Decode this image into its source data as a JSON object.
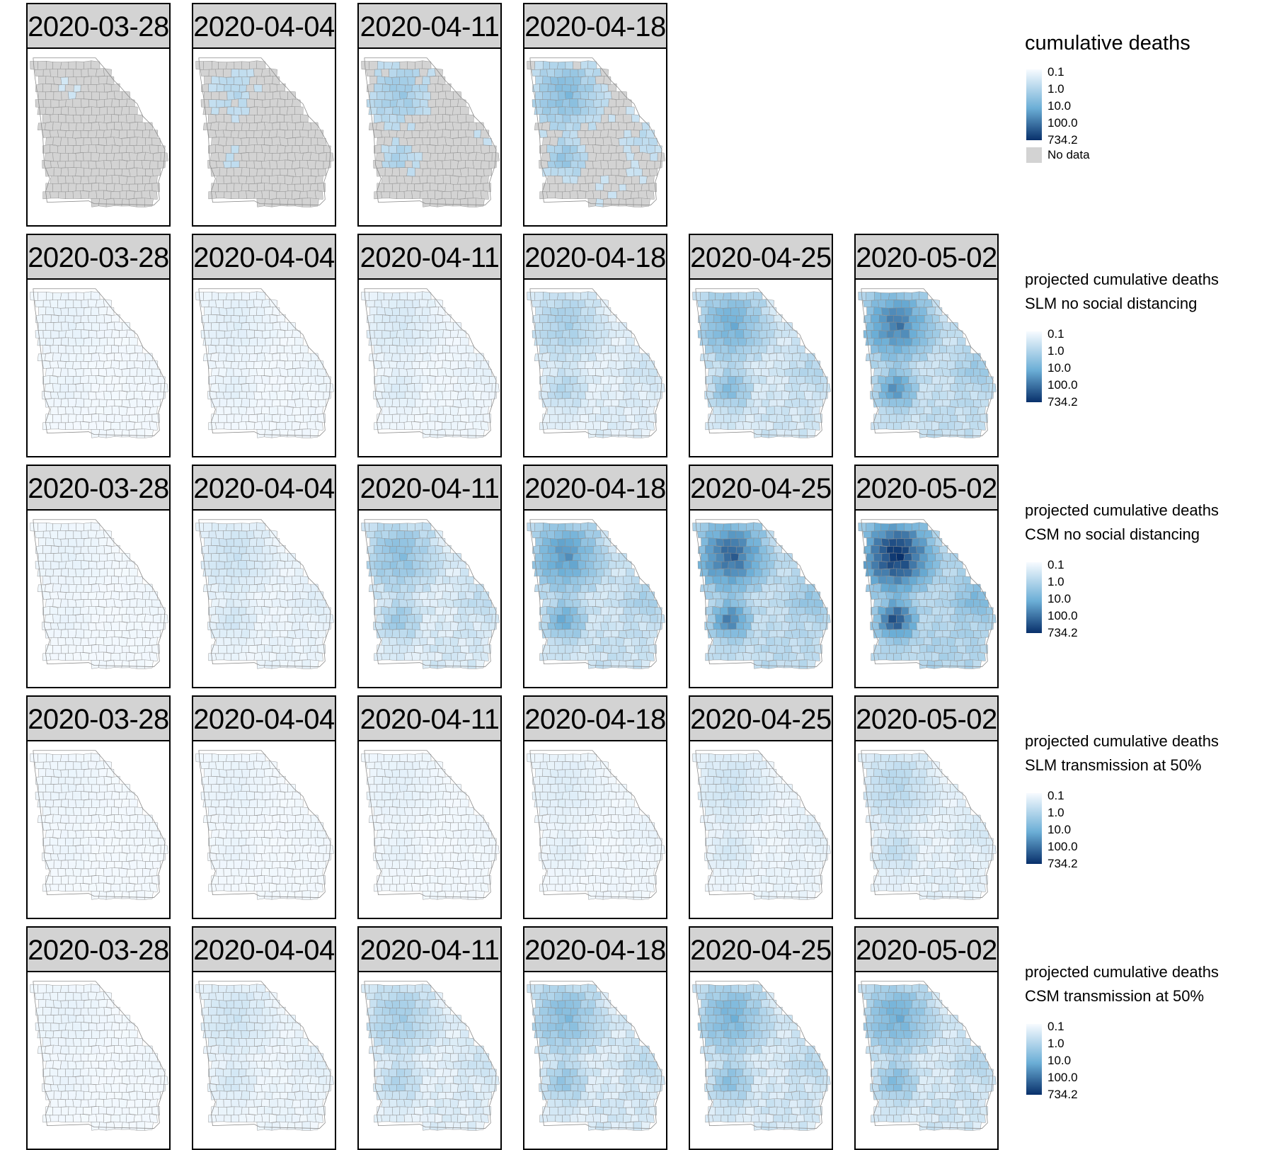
{
  "rows": [
    {
      "legend_title": "cumulative deaths",
      "legend_subtitle": "",
      "panels": [
        {
          "date": "2020-03-28",
          "intensity": 0.12,
          "nodata": 0.8
        },
        {
          "date": "2020-04-04",
          "intensity": 0.2,
          "nodata": 0.62
        },
        {
          "date": "2020-04-11",
          "intensity": 0.28,
          "nodata": 0.45
        },
        {
          "date": "2020-04-18",
          "intensity": 0.36,
          "nodata": 0.3
        }
      ]
    },
    {
      "legend_title": "projected cumulative deaths",
      "legend_subtitle": "SLM no social distancing",
      "panels": [
        {
          "date": "2020-03-28",
          "intensity": 0.05
        },
        {
          "date": "2020-04-04",
          "intensity": 0.07
        },
        {
          "date": "2020-04-11",
          "intensity": 0.1
        },
        {
          "date": "2020-04-18",
          "intensity": 0.25
        },
        {
          "date": "2020-04-25",
          "intensity": 0.42
        },
        {
          "date": "2020-05-02",
          "intensity": 0.58
        }
      ]
    },
    {
      "legend_title": "projected cumulative deaths",
      "legend_subtitle": "CSM no social distancing",
      "panels": [
        {
          "date": "2020-03-28",
          "intensity": 0.05
        },
        {
          "date": "2020-04-04",
          "intensity": 0.14
        },
        {
          "date": "2020-04-11",
          "intensity": 0.34
        },
        {
          "date": "2020-04-18",
          "intensity": 0.5
        },
        {
          "date": "2020-04-25",
          "intensity": 0.64
        },
        {
          "date": "2020-05-02",
          "intensity": 0.78
        }
      ]
    },
    {
      "legend_title": "projected cumulative deaths",
      "legend_subtitle": "SLM transmission at 50%",
      "panels": [
        {
          "date": "2020-03-28",
          "intensity": 0.04
        },
        {
          "date": "2020-04-04",
          "intensity": 0.05
        },
        {
          "date": "2020-04-11",
          "intensity": 0.06
        },
        {
          "date": "2020-04-18",
          "intensity": 0.08
        },
        {
          "date": "2020-04-25",
          "intensity": 0.13
        },
        {
          "date": "2020-05-02",
          "intensity": 0.2
        }
      ]
    },
    {
      "legend_title": "projected cumulative deaths",
      "legend_subtitle": "CSM transmission at 50%",
      "panels": [
        {
          "date": "2020-03-28",
          "intensity": 0.05
        },
        {
          "date": "2020-04-04",
          "intensity": 0.13
        },
        {
          "date": "2020-04-11",
          "intensity": 0.26
        },
        {
          "date": "2020-04-18",
          "intensity": 0.36
        },
        {
          "date": "2020-04-25",
          "intensity": 0.4
        },
        {
          "date": "2020-05-02",
          "intensity": 0.42
        }
      ]
    }
  ],
  "legend_ticks": [
    "0.1",
    "1.0",
    "10.0",
    "100.0",
    "734.2"
  ],
  "nodata_label": "No data",
  "colors": {
    "ramp_low": "#f7fbff",
    "ramp_mid": "#6baed6",
    "ramp_high": "#08306b",
    "nodata": "#d3d3d3",
    "strip": "#d3d3d3",
    "border": "#000000"
  }
}
